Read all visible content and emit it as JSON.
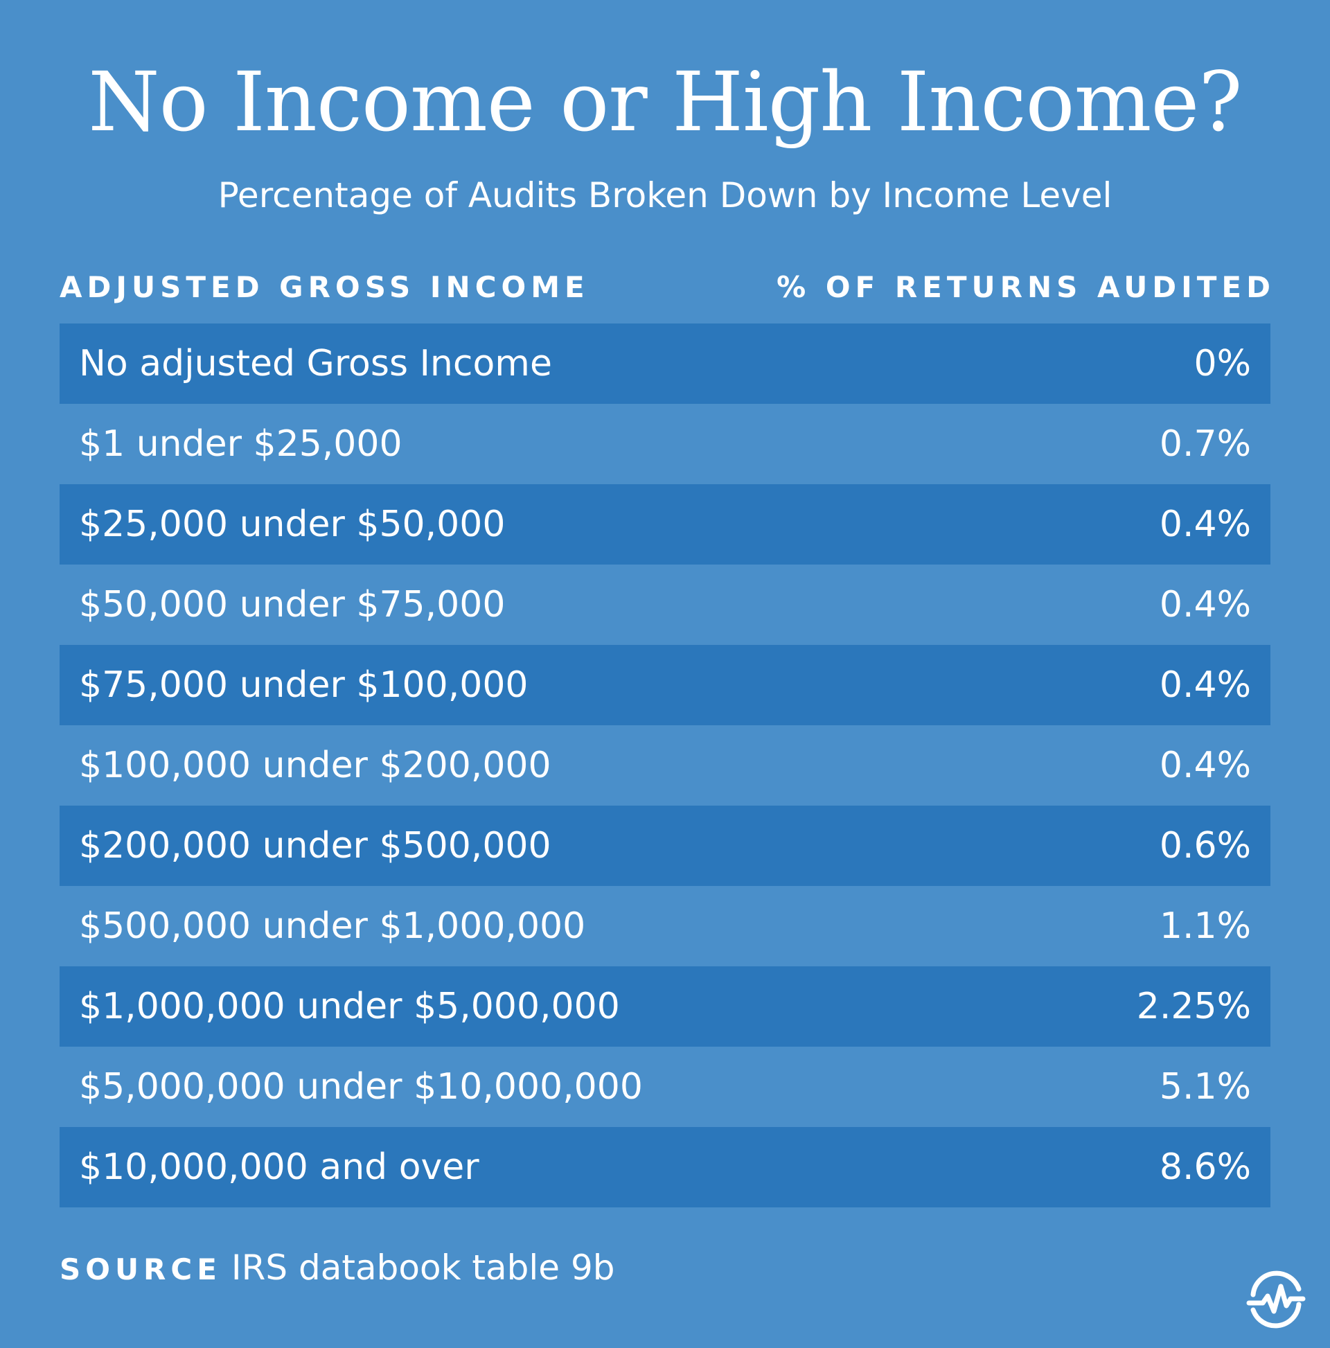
{
  "chart_data": {
    "type": "table",
    "title": "No Income or High Income?",
    "subtitle": "Percentage of Audits Broken Down by Income Level",
    "columns": [
      "ADJUSTED GROSS INCOME",
      "% OF RETURNS AUDITED"
    ],
    "rows": [
      {
        "label": "No adjusted Gross Income",
        "value": "0%"
      },
      {
        "label": "$1 under $25,000",
        "value": "0.7%"
      },
      {
        "label": "$25,000 under $50,000",
        "value": "0.4%"
      },
      {
        "label": "$50,000 under $75,000",
        "value": "0.4%"
      },
      {
        "label": "$75,000 under $100,000",
        "value": "0.4%"
      },
      {
        "label": "$100,000 under $200,000",
        "value": "0.4%"
      },
      {
        "label": "$200,000 under $500,000",
        "value": "0.6%"
      },
      {
        "label": "$500,000 under $1,000,000",
        "value": "1.1%"
      },
      {
        "label": "$1,000,000 under $5,000,000",
        "value": "2.25%"
      },
      {
        "label": "$5,000,000 under $10,000,000",
        "value": "5.1%"
      },
      {
        "label": "$10,000,000 and over",
        "value": "8.6%"
      }
    ]
  },
  "source": {
    "label": "SOURCE",
    "text": "IRS databook table 9b"
  },
  "logo": {
    "icon": "wave-pulse-logo-icon"
  },
  "colors": {
    "background": "#4a8fca",
    "row_dark": "#2b77bb",
    "text": "#ffffff"
  }
}
